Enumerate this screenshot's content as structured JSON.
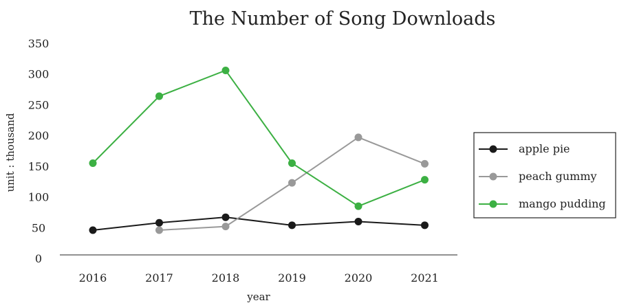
{
  "chart_data": {
    "type": "line",
    "title": "The Number of Song Downloads",
    "xlabel": "year",
    "ylabel": "unit : thousand",
    "categories": [
      "2016",
      "2017",
      "2018",
      "2019",
      "2020",
      "2021"
    ],
    "ylim": [
      0,
      350
    ],
    "yticks": [
      "0",
      "50",
      "100",
      "150",
      "200",
      "250",
      "300",
      "350"
    ],
    "grid": false,
    "legend_position": "right",
    "series": [
      {
        "name": "apple pie",
        "color": "#1a1a1a",
        "values": [
          47,
          59,
          68,
          55,
          61,
          55
        ]
      },
      {
        "name": "peach gummy",
        "color": "#999999",
        "values": [
          null,
          47,
          53,
          124,
          198,
          155
        ]
      },
      {
        "name": "mango pudding",
        "color": "#3cb043",
        "values": [
          156,
          265,
          307,
          156,
          86,
          129
        ]
      }
    ]
  }
}
